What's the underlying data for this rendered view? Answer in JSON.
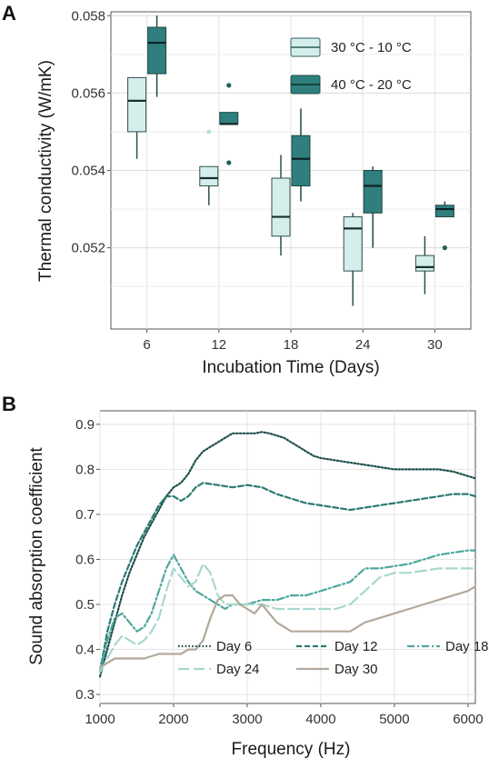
{
  "chart_data": [
    {
      "panel": "A",
      "type": "box",
      "xlabel": "Incubation Time (Days)",
      "ylabel": "Thermal conductivity (W/mK)",
      "categories": [
        "6",
        "12",
        "18",
        "24",
        "30"
      ],
      "ylim": [
        0.0499,
        0.0581
      ],
      "yticks": [
        "0.052",
        "0.054",
        "0.056",
        "0.058"
      ],
      "grid": true,
      "legend_position": "top-right",
      "series": [
        {
          "name": "30 °C - 10 °C",
          "color": "#d4efeb",
          "boxes": [
            {
              "whisker_low": 0.0543,
              "q1": 0.055,
              "median": 0.0558,
              "q3": 0.0564,
              "whisker_high": 0.0564,
              "outliers": []
            },
            {
              "whisker_low": 0.0531,
              "q1": 0.0536,
              "median": 0.0538,
              "q3": 0.0541,
              "whisker_high": 0.0541,
              "outliers": [
                0.055
              ]
            },
            {
              "whisker_low": 0.0518,
              "q1": 0.0523,
              "median": 0.0528,
              "q3": 0.0538,
              "whisker_high": 0.0544,
              "outliers": []
            },
            {
              "whisker_low": 0.0505,
              "q1": 0.0514,
              "median": 0.0525,
              "q3": 0.0528,
              "whisker_high": 0.0529,
              "outliers": []
            },
            {
              "whisker_low": 0.0508,
              "q1": 0.0514,
              "median": 0.0515,
              "q3": 0.0518,
              "whisker_high": 0.0523,
              "outliers": []
            }
          ]
        },
        {
          "name": "40 °C - 20 °C",
          "color": "#2e7f7d",
          "boxes": [
            {
              "whisker_low": 0.0559,
              "q1": 0.0565,
              "median": 0.0573,
              "q3": 0.0577,
              "whisker_high": 0.058,
              "outliers": []
            },
            {
              "whisker_low": 0.0552,
              "q1": 0.0552,
              "median": 0.0552,
              "q3": 0.0555,
              "whisker_high": 0.0555,
              "outliers": [
                0.0562,
                0.0542
              ]
            },
            {
              "whisker_low": 0.0532,
              "q1": 0.0536,
              "median": 0.0543,
              "q3": 0.0549,
              "whisker_high": 0.0556,
              "outliers": []
            },
            {
              "whisker_low": 0.052,
              "q1": 0.0529,
              "median": 0.0536,
              "q3": 0.054,
              "whisker_high": 0.0541,
              "outliers": []
            },
            {
              "whisker_low": 0.0528,
              "q1": 0.0528,
              "median": 0.053,
              "q3": 0.0531,
              "whisker_high": 0.0532,
              "outliers": [
                0.052
              ]
            }
          ]
        }
      ]
    },
    {
      "panel": "B",
      "type": "line",
      "xlabel": "Frequency (Hz)",
      "ylabel": "Sound absorption coefficient",
      "xlim": [
        1000,
        6100
      ],
      "ylim": [
        0.28,
        0.93
      ],
      "xticks": [
        "1000",
        "2000",
        "3000",
        "4000",
        "5000",
        "6000"
      ],
      "yticks": [
        "0.3",
        "0.4",
        "0.5",
        "0.6",
        "0.7",
        "0.8",
        "0.9"
      ],
      "grid": true,
      "legend_position": "bottom-right",
      "series": [
        {
          "name": "Day 6",
          "color": "#1f4f4d",
          "dash": "dotted",
          "x": [
            1000,
            1100,
            1200,
            1300,
            1400,
            1500,
            1600,
            1700,
            1800,
            1900,
            2000,
            2100,
            2200,
            2300,
            2400,
            2500,
            2600,
            2700,
            2800,
            2900,
            3000,
            3100,
            3200,
            3300,
            3400,
            3500,
            3600,
            3700,
            3800,
            3900,
            4000,
            4200,
            4400,
            4600,
            4800,
            5000,
            5200,
            5400,
            5600,
            5800,
            6000,
            6100
          ],
          "y": [
            0.34,
            0.4,
            0.46,
            0.52,
            0.57,
            0.61,
            0.65,
            0.68,
            0.71,
            0.74,
            0.76,
            0.77,
            0.79,
            0.82,
            0.84,
            0.85,
            0.86,
            0.87,
            0.88,
            0.88,
            0.88,
            0.88,
            0.883,
            0.88,
            0.875,
            0.87,
            0.86,
            0.85,
            0.84,
            0.83,
            0.825,
            0.82,
            0.815,
            0.81,
            0.805,
            0.8,
            0.8,
            0.8,
            0.8,
            0.795,
            0.785,
            0.78
          ]
        },
        {
          "name": "Day 12",
          "color": "#2b7a72",
          "dash": "dashed",
          "x": [
            1000,
            1100,
            1200,
            1300,
            1400,
            1500,
            1600,
            1700,
            1800,
            1900,
            2000,
            2100,
            2200,
            2300,
            2400,
            2600,
            2800,
            3000,
            3200,
            3400,
            3600,
            3800,
            4000,
            4200,
            4400,
            4600,
            4800,
            5000,
            5200,
            5400,
            5600,
            5800,
            6000,
            6100
          ],
          "y": [
            0.35,
            0.44,
            0.5,
            0.55,
            0.59,
            0.63,
            0.66,
            0.69,
            0.72,
            0.74,
            0.74,
            0.73,
            0.74,
            0.76,
            0.77,
            0.765,
            0.76,
            0.765,
            0.76,
            0.745,
            0.735,
            0.725,
            0.72,
            0.715,
            0.71,
            0.715,
            0.72,
            0.725,
            0.73,
            0.735,
            0.74,
            0.745,
            0.745,
            0.74
          ]
        },
        {
          "name": "Day 18",
          "color": "#4ea79d",
          "dash": "dashdot",
          "x": [
            1000,
            1100,
            1200,
            1300,
            1400,
            1500,
            1600,
            1700,
            1800,
            1900,
            2000,
            2100,
            2200,
            2300,
            2400,
            2500,
            2600,
            2700,
            2800,
            3000,
            3200,
            3400,
            3600,
            3800,
            4000,
            4200,
            4400,
            4600,
            4800,
            5000,
            5200,
            5400,
            5600,
            5800,
            6000,
            6100
          ],
          "y": [
            0.35,
            0.42,
            0.47,
            0.48,
            0.46,
            0.44,
            0.45,
            0.48,
            0.53,
            0.58,
            0.61,
            0.58,
            0.55,
            0.53,
            0.52,
            0.51,
            0.5,
            0.49,
            0.5,
            0.5,
            0.51,
            0.51,
            0.52,
            0.52,
            0.53,
            0.54,
            0.55,
            0.58,
            0.58,
            0.585,
            0.59,
            0.6,
            0.61,
            0.615,
            0.62,
            0.62
          ]
        },
        {
          "name": "Day 24",
          "color": "#a6d8d0",
          "dash": "longdash",
          "x": [
            1000,
            1100,
            1200,
            1300,
            1400,
            1500,
            1600,
            1700,
            1800,
            1900,
            2000,
            2100,
            2200,
            2300,
            2400,
            2500,
            2600,
            2700,
            2800,
            3000,
            3200,
            3400,
            3600,
            3800,
            4000,
            4200,
            4400,
            4600,
            4800,
            5000,
            5200,
            5400,
            5600,
            5800,
            6000,
            6100
          ],
          "y": [
            0.35,
            0.38,
            0.41,
            0.43,
            0.42,
            0.41,
            0.42,
            0.44,
            0.47,
            0.53,
            0.58,
            0.56,
            0.54,
            0.55,
            0.59,
            0.57,
            0.52,
            0.5,
            0.5,
            0.5,
            0.5,
            0.49,
            0.49,
            0.49,
            0.49,
            0.49,
            0.5,
            0.53,
            0.56,
            0.57,
            0.57,
            0.575,
            0.58,
            0.58,
            0.58,
            0.58
          ]
        },
        {
          "name": "Day 30",
          "color": "#b3a89b",
          "dash": "solid",
          "x": [
            1000,
            1100,
            1200,
            1300,
            1400,
            1500,
            1600,
            1700,
            1800,
            1900,
            2000,
            2100,
            2200,
            2300,
            2400,
            2500,
            2600,
            2700,
            2800,
            2900,
            3000,
            3100,
            3200,
            3300,
            3400,
            3600,
            3800,
            4000,
            4200,
            4400,
            4600,
            4800,
            5000,
            5200,
            5400,
            5600,
            5800,
            6000,
            6100
          ],
          "y": [
            0.36,
            0.37,
            0.38,
            0.38,
            0.38,
            0.38,
            0.38,
            0.385,
            0.39,
            0.39,
            0.39,
            0.39,
            0.4,
            0.4,
            0.42,
            0.47,
            0.51,
            0.52,
            0.52,
            0.5,
            0.49,
            0.48,
            0.5,
            0.48,
            0.46,
            0.44,
            0.44,
            0.44,
            0.44,
            0.44,
            0.46,
            0.47,
            0.48,
            0.49,
            0.5,
            0.51,
            0.52,
            0.53,
            0.54
          ]
        }
      ]
    }
  ],
  "panel_labels": [
    "A",
    "B"
  ]
}
